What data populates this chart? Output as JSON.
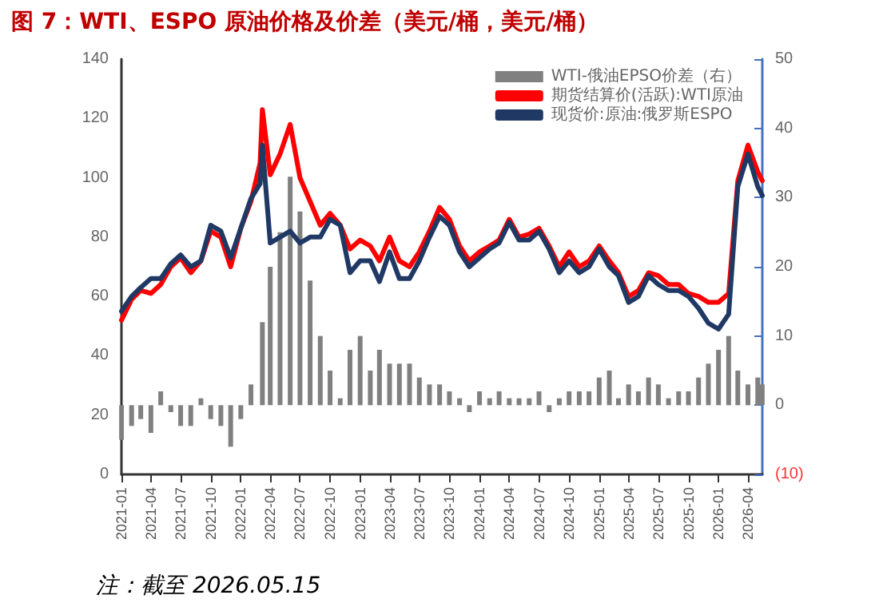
{
  "chart_data": {
    "type": "line",
    "title": "图 7：WTI、ESPO 原油价格及价差（美元/桶，美元/桶）",
    "annotations": [
      "注：截至 2026.05.15"
    ],
    "x": [
      "2021-01",
      "2021-02",
      "2021-03",
      "2021-04",
      "2021-05",
      "2021-06",
      "2021-07",
      "2021-08",
      "2021-09",
      "2021-10",
      "2021-11",
      "2021-12",
      "2022-01",
      "2022-02",
      "2022-03",
      "2022-03-08",
      "2022-04",
      "2022-05",
      "2022-06",
      "2022-07",
      "2022-08",
      "2022-09",
      "2022-10",
      "2022-11",
      "2022-12",
      "2023-01",
      "2023-02",
      "2023-03",
      "2023-04",
      "2023-05",
      "2023-06",
      "2023-07",
      "2023-08",
      "2023-09",
      "2023-10",
      "2023-11",
      "2023-12",
      "2024-01",
      "2024-02",
      "2024-03",
      "2024-04",
      "2024-05",
      "2024-06",
      "2024-07",
      "2024-08",
      "2024-09",
      "2024-10",
      "2024-11",
      "2024-12",
      "2025-01",
      "2025-02",
      "2025-03",
      "2025-04",
      "2025-05",
      "2025-06",
      "2025-07",
      "2025-08",
      "2025-09",
      "2025-10",
      "2025-11",
      "2025-12",
      "2026-01",
      "2026-02",
      "2026-03",
      "2026-04",
      "2026-05",
      "2026-05-15"
    ],
    "series": [
      {
        "name": "WTI-俄油EPSO价差（右）",
        "type": "bar",
        "axis": "y2",
        "color": "#808080",
        "values": [
          -5,
          -3,
          -2,
          -4,
          2,
          -1,
          -3,
          -3,
          1,
          -2,
          -3,
          -6,
          -2,
          3,
          null,
          12,
          20,
          25,
          33,
          28,
          18,
          10,
          5,
          1,
          8,
          10,
          5,
          8,
          6,
          6,
          6,
          4,
          3,
          3,
          2,
          1,
          -1,
          2,
          1,
          2,
          1,
          1,
          1,
          2,
          -1,
          1,
          2,
          2,
          2,
          4,
          5,
          1,
          3,
          2,
          4,
          3,
          1,
          2,
          2,
          4,
          6,
          8,
          10,
          5,
          3,
          4,
          3
        ]
      },
      {
        "name": "期货结算价(活跃):WTI原油",
        "color": "#ff0000",
        "values": [
          52,
          59,
          62,
          61,
          64,
          70,
          73,
          68,
          72,
          82,
          80,
          70,
          83,
          92,
          105,
          123,
          101,
          108,
          118,
          100,
          92,
          84,
          88,
          84,
          76,
          79,
          77,
          72,
          80,
          72,
          70,
          75,
          82,
          90,
          86,
          77,
          72,
          75,
          77,
          79,
          86,
          80,
          81,
          83,
          77,
          70,
          75,
          70,
          72,
          77,
          72,
          68,
          60,
          62,
          68,
          67,
          64,
          64,
          61,
          60,
          58,
          58,
          61,
          99,
          111,
          102,
          99
        ]
      },
      {
        "name": "现货价:原油:俄罗斯ESPO",
        "color": "#1f3864",
        "values": [
          55,
          60,
          63,
          66,
          66,
          71,
          74,
          70,
          72,
          84,
          82,
          73,
          83,
          93,
          98,
          111,
          78,
          80,
          82,
          78,
          80,
          80,
          86,
          84,
          68,
          72,
          72,
          65,
          75,
          66,
          66,
          72,
          80,
          87,
          84,
          75,
          70,
          73,
          76,
          78,
          85,
          79,
          79,
          82,
          76,
          68,
          72,
          68,
          70,
          76,
          70,
          67,
          58,
          60,
          67,
          64,
          62,
          62,
          60,
          56,
          51,
          49,
          54,
          97,
          108,
          97,
          94
        ]
      }
    ],
    "xlim": [
      "2021-01-01",
      "2026-05-15"
    ],
    "xticks": [
      "2021-01",
      "2021-04",
      "2021-07",
      "2021-10",
      "2022-01",
      "2022-04",
      "2022-07",
      "2022-10",
      "2023-01",
      "2023-04",
      "2023-07",
      "2023-10",
      "2024-01",
      "2024-04",
      "2024-07",
      "2024-10",
      "2025-01",
      "2025-04",
      "2025-07",
      "2025-10",
      "2026-01",
      "2026-04"
    ],
    "ylim": [
      0,
      140
    ],
    "yticks": [
      0,
      20,
      40,
      60,
      80,
      100,
      120,
      140
    ],
    "y2lim": [
      -10,
      50
    ],
    "y2ticks": [
      {
        "value": -10,
        "label": "(10)"
      },
      0,
      10,
      20,
      30,
      40,
      50
    ],
    "grid": false,
    "legend": "top right",
    "marker": "none",
    "line_style": "solid"
  }
}
